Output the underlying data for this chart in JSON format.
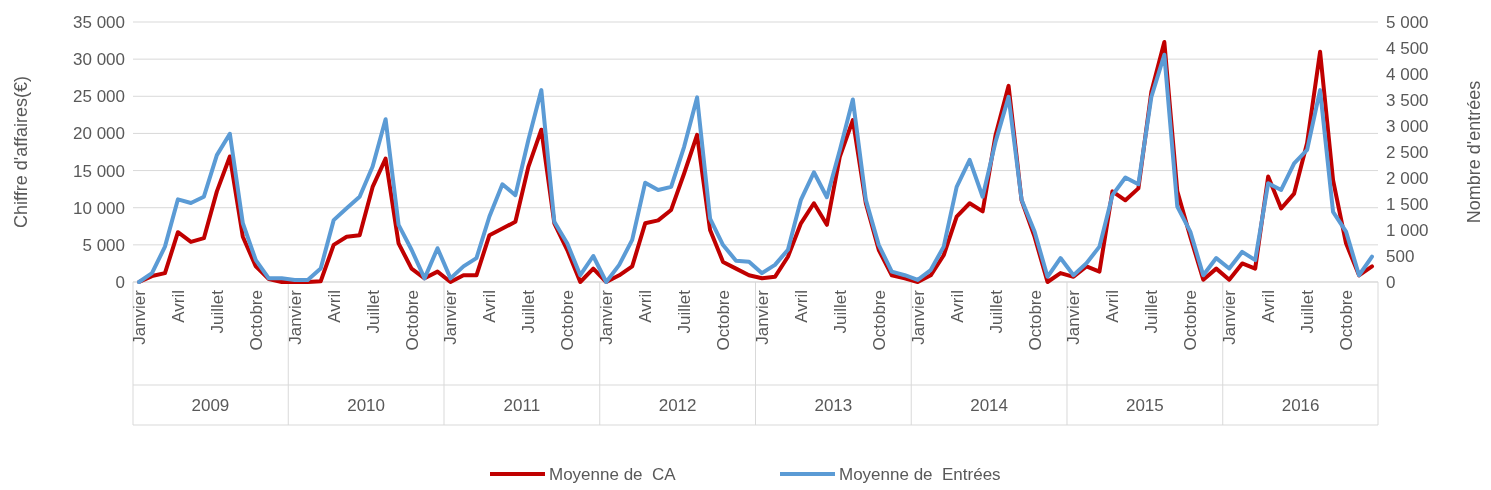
{
  "chart_data": {
    "type": "line",
    "ylabel": "Chiffre d'affaires(€)",
    "y2label": "Nombre d'entrées",
    "categories": [
      "Janvier",
      null,
      null,
      "Avril",
      null,
      null,
      "Juillet",
      null,
      null,
      "Octobre",
      null,
      null,
      "Janvier",
      null,
      null,
      "Avril",
      null,
      null,
      "Juillet",
      null,
      null,
      "Octobre",
      null,
      null,
      "Janvier",
      null,
      null,
      "Avril",
      null,
      null,
      "Juillet",
      null,
      null,
      "Octobre",
      null,
      null,
      "Janvier",
      null,
      null,
      "Avril",
      null,
      null,
      "Juillet",
      null,
      null,
      "Octobre",
      null,
      null,
      "Janvier",
      null,
      null,
      "Avril",
      null,
      null,
      "Juillet",
      null,
      null,
      "Octobre",
      null,
      null,
      "Janvier",
      null,
      null,
      "Avril",
      null,
      null,
      "Juillet",
      null,
      null,
      "Octobre",
      null,
      null,
      "Janvier",
      null,
      null,
      "Avril",
      null,
      null,
      "Juillet",
      null,
      null,
      "Octobre",
      null,
      null,
      "Janvier",
      null,
      null,
      "Avril",
      null,
      null,
      "Juillet",
      null,
      null,
      "Octobre",
      null,
      null
    ],
    "annotations": [
      "2009",
      "2010",
      "2011",
      "2012",
      "2013",
      "2014",
      "2015",
      "2016"
    ],
    "series": [
      {
        "name": "Moyenne de  CA",
        "color": "#c00000",
        "values": [
          0,
          800,
          1200,
          6700,
          5400,
          5900,
          12200,
          16900,
          6100,
          2100,
          400,
          0,
          0,
          0,
          100,
          5000,
          6100,
          6300,
          12800,
          16600,
          5200,
          1800,
          500,
          1400,
          0,
          900,
          900,
          6300,
          7200,
          8100,
          15500,
          20500,
          7900,
          4300,
          0,
          1800,
          0,
          900,
          2100,
          7900,
          8300,
          9700,
          14600,
          19800,
          7000,
          2700,
          1800,
          900,
          500,
          700,
          3400,
          7900,
          10600,
          7700,
          16900,
          21800,
          10600,
          4300,
          900,
          500,
          0,
          900,
          3600,
          8800,
          10600,
          9500,
          19800,
          26400,
          11000,
          6100,
          0,
          1200,
          700,
          2100,
          1400,
          12200,
          11000,
          12600,
          25600,
          32300,
          12200,
          6100,
          300,
          1800,
          300,
          2500,
          1800,
          14200,
          9900,
          11900,
          18700,
          31000,
          13700,
          5200,
          900,
          2100
        ]
      },
      {
        "name": "Moyenne de  Entrées",
        "color": "#5b9bd5",
        "axis": "y2",
        "values": [
          0,
          170,
          680,
          1590,
          1520,
          1640,
          2440,
          2850,
          1130,
          420,
          70,
          70,
          40,
          40,
          260,
          1190,
          1420,
          1640,
          2220,
          3130,
          1100,
          620,
          70,
          650,
          70,
          300,
          460,
          1260,
          1880,
          1670,
          2730,
          3690,
          1160,
          740,
          130,
          500,
          0,
          330,
          810,
          1910,
          1770,
          1830,
          2600,
          3550,
          1220,
          710,
          410,
          390,
          170,
          330,
          620,
          1580,
          2110,
          1630,
          2540,
          3510,
          1580,
          710,
          200,
          130,
          40,
          230,
          680,
          1830,
          2350,
          1640,
          2700,
          3560,
          1580,
          970,
          100,
          460,
          130,
          360,
          680,
          1670,
          2010,
          1880,
          3560,
          4370,
          1450,
          970,
          130,
          460,
          260,
          580,
          420,
          1900,
          1770,
          2280,
          2540,
          3690,
          1350,
          970,
          130,
          490
        ]
      }
    ],
    "ylim": [
      0,
      35000
    ],
    "yticks": [
      0,
      {
        "value": 5000,
        "label": "5 000"
      },
      {
        "value": 10000,
        "label": "10 000"
      },
      {
        "value": 15000,
        "label": "15 000"
      },
      {
        "value": 20000,
        "label": "20 000"
      },
      {
        "value": 25000,
        "label": "25 000"
      },
      {
        "value": 30000,
        "label": "30 000"
      },
      {
        "value": 35000,
        "label": "35 000"
      }
    ],
    "y2lim": [
      0,
      5000
    ],
    "y2ticks": [
      0,
      500,
      {
        "value": 1000,
        "label": "1 000"
      },
      {
        "value": 1500,
        "label": "1 500"
      },
      {
        "value": 2000,
        "label": "2 000"
      },
      {
        "value": 2500,
        "label": "2 500"
      },
      {
        "value": 3000,
        "label": "3 000"
      },
      {
        "value": 3500,
        "label": "3 500"
      },
      {
        "value": 4000,
        "label": "4 000"
      },
      {
        "value": 4500,
        "label": "4 500"
      },
      {
        "value": 5000,
        "label": "5 000"
      }
    ],
    "grid": "y",
    "legend": "bottom",
    "marker": "none",
    "line_style": "solid"
  }
}
